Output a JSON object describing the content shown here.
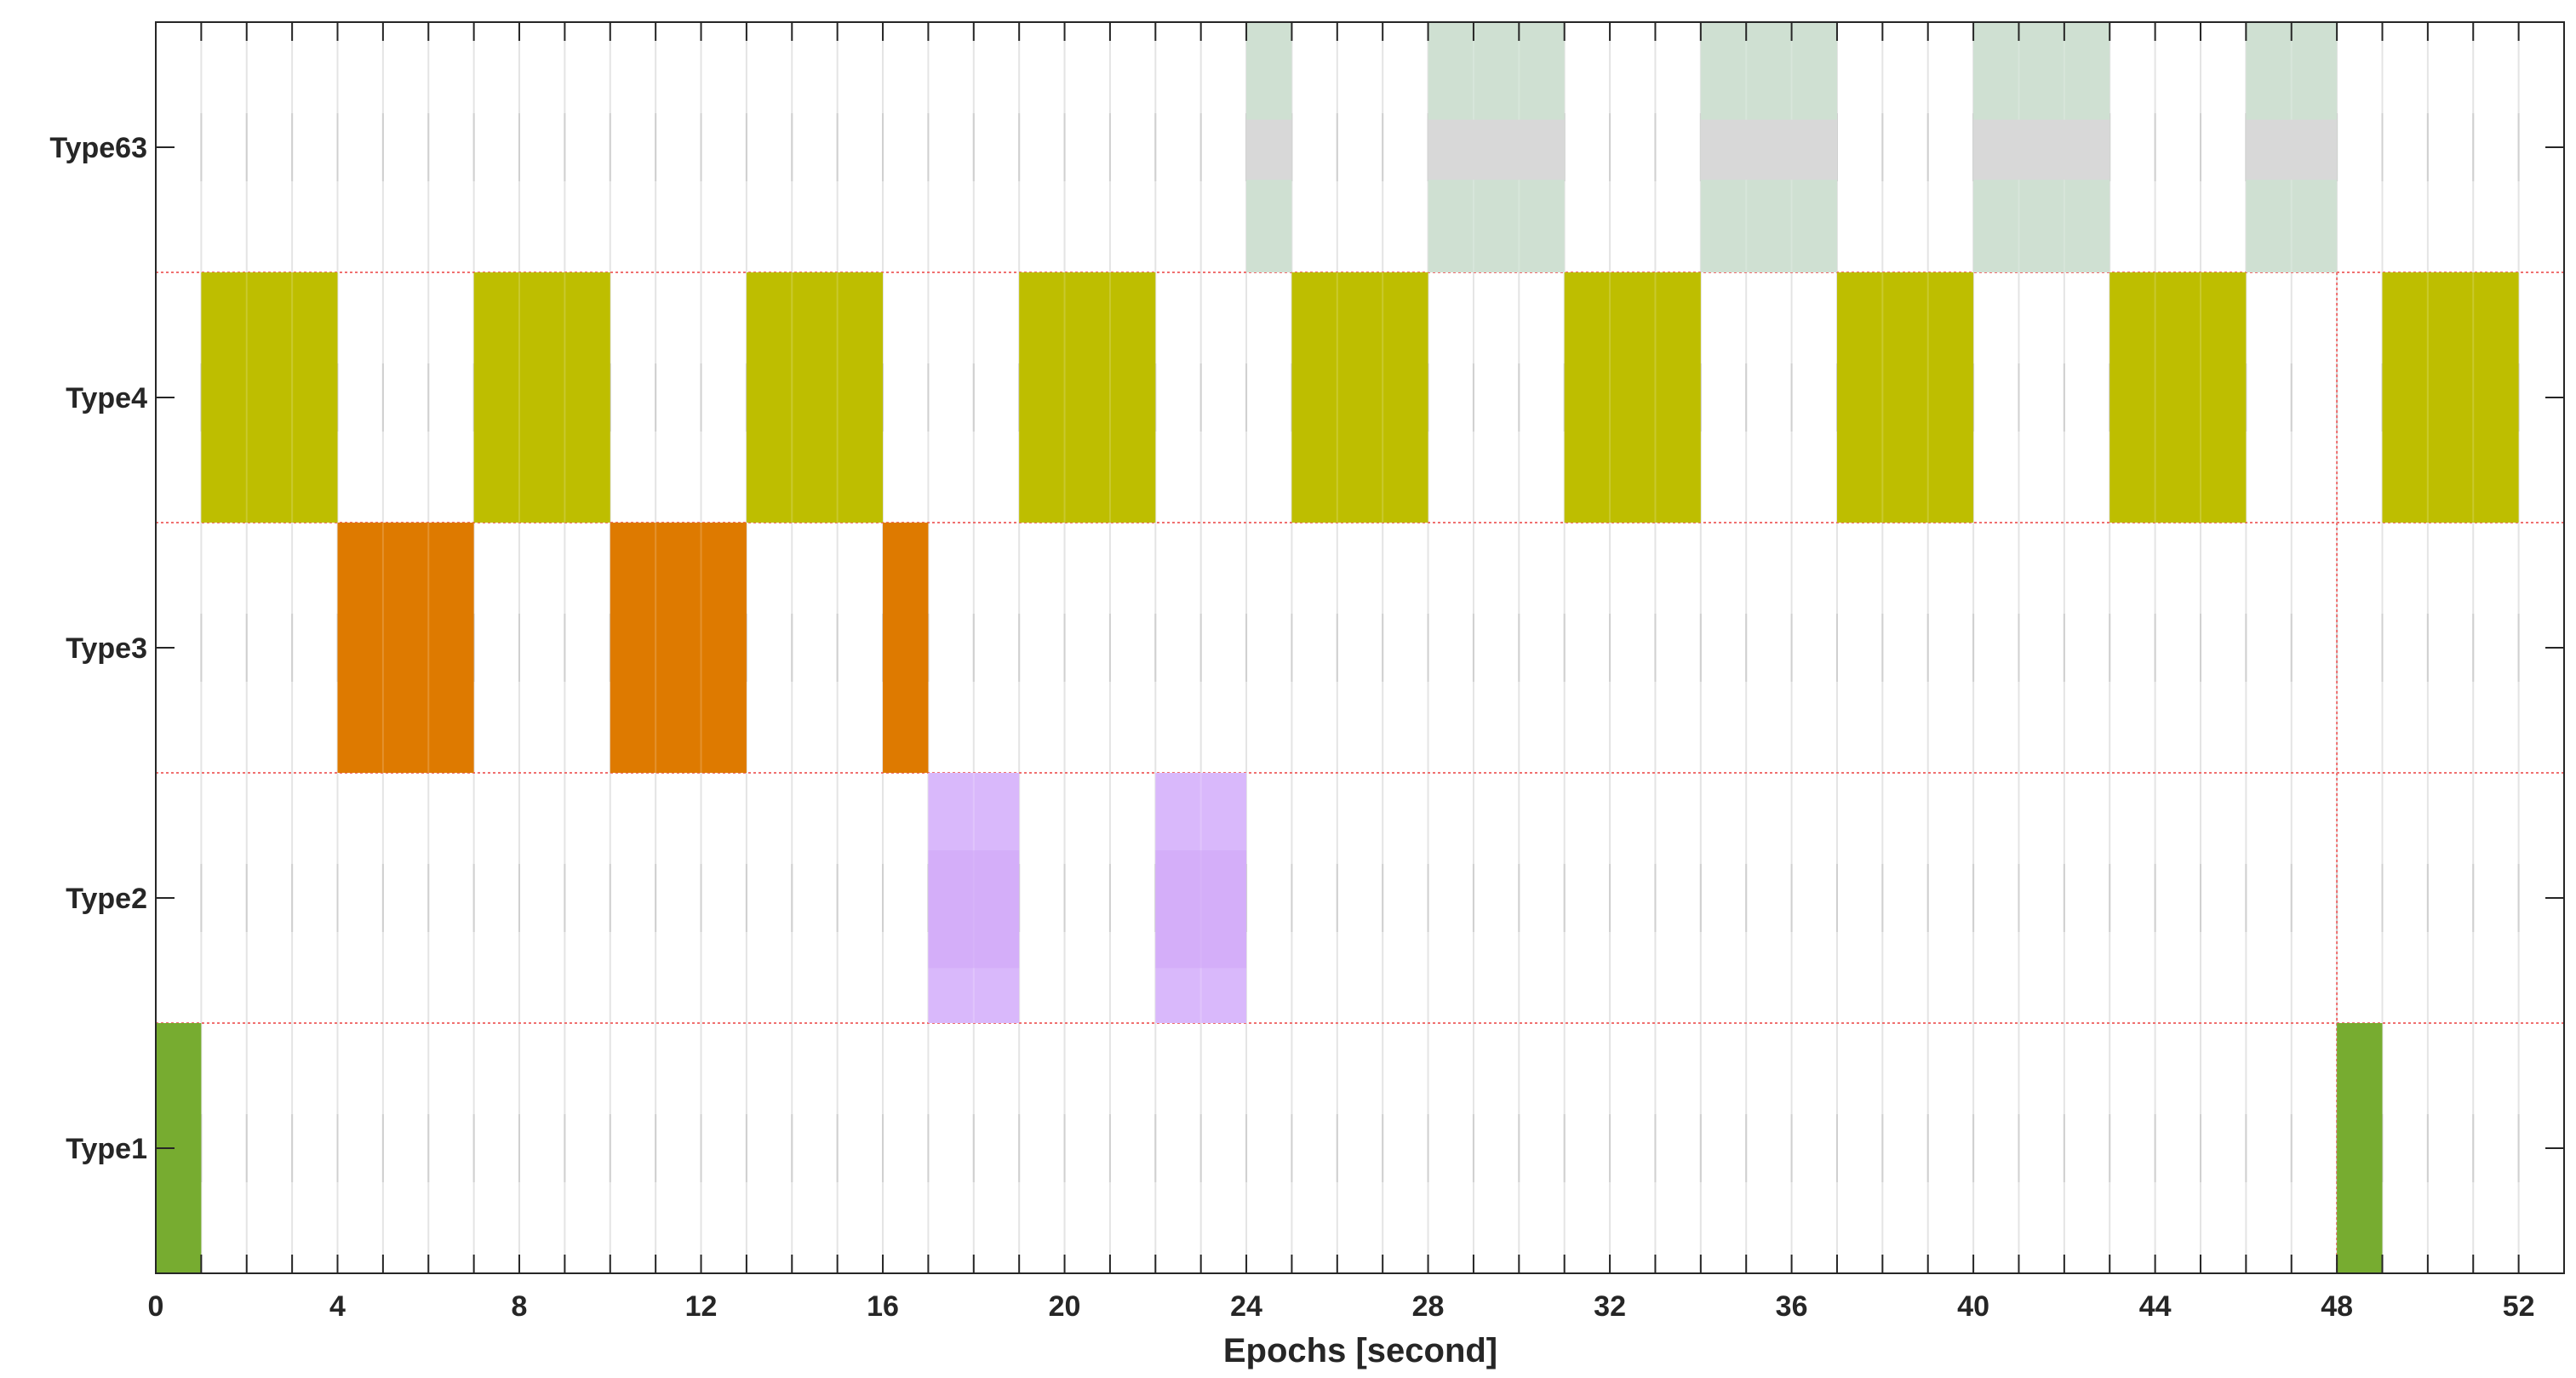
{
  "chart_data": {
    "type": "timeline",
    "title": "",
    "xlabel": "Epochs [second]",
    "ylabel": "",
    "xlim": [
      0,
      53
    ],
    "xticks": [
      0,
      4,
      8,
      12,
      16,
      20,
      24,
      28,
      32,
      36,
      40,
      44,
      48,
      52
    ],
    "categories": [
      "Type1",
      "Type2",
      "Type3",
      "Type4",
      "Type63"
    ],
    "grid": true,
    "series": [
      {
        "name": "Type1",
        "color": "#77ac30",
        "segments": [
          [
            0,
            1
          ],
          [
            48,
            49
          ]
        ]
      },
      {
        "name": "Type2",
        "color": "#d9b8fb",
        "segments": [
          [
            17,
            19
          ],
          [
            22,
            24
          ]
        ]
      },
      {
        "name": "Type3",
        "color": "#de7a00",
        "segments": [
          [
            4,
            7
          ],
          [
            10,
            13
          ],
          [
            16,
            17
          ]
        ]
      },
      {
        "name": "Type4",
        "color": "#bebe00",
        "segments": [
          [
            1,
            4
          ],
          [
            7,
            10
          ],
          [
            13,
            16
          ],
          [
            19,
            22
          ],
          [
            25,
            28
          ],
          [
            31,
            34
          ],
          [
            37,
            40
          ],
          [
            43,
            46
          ],
          [
            49,
            52
          ]
        ]
      },
      {
        "name": "Type63",
        "color": "#cfe0d2",
        "segments": [
          [
            24,
            25
          ],
          [
            28,
            31
          ],
          [
            34,
            37
          ],
          [
            40,
            43
          ],
          [
            46,
            48
          ]
        ]
      }
    ]
  }
}
